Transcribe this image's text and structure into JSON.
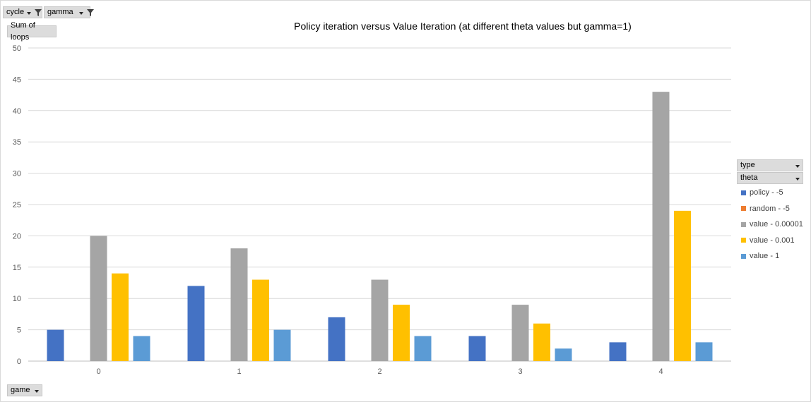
{
  "filters": {
    "cycle_label": "cycle",
    "gamma_label": "gamma",
    "values_label": "Sum of loops",
    "type_label": "type",
    "theta_label": "theta",
    "axis_field_label": "game"
  },
  "icons": {
    "filter": "funnel-filter-icon",
    "dropdown": "chevron-down-icon"
  },
  "chart_data": {
    "type": "bar",
    "title": "Policy iteration versus Value Iteration (at different theta values but gamma=1)",
    "categories": [
      "0",
      "1",
      "2",
      "3",
      "4"
    ],
    "ylim": [
      0,
      50
    ],
    "yticks": [
      0,
      5,
      10,
      15,
      20,
      25,
      30,
      35,
      40,
      45,
      50
    ],
    "grid": true,
    "legend_position": "right",
    "series": [
      {
        "name": "policy - -5",
        "color": "#4472C4",
        "values": [
          5,
          12,
          7,
          4,
          3
        ]
      },
      {
        "name": "random - -5",
        "color": "#ED7D31",
        "values": [
          0,
          0,
          0,
          0,
          0
        ]
      },
      {
        "name": "value - 0.00001",
        "color": "#A5A5A5",
        "values": [
          20,
          18,
          13,
          9,
          43
        ]
      },
      {
        "name": "value - 0.001",
        "color": "#FFC000",
        "values": [
          14,
          13,
          9,
          6,
          24
        ]
      },
      {
        "name": "value - 1",
        "color": "#5B9BD5",
        "values": [
          4,
          5,
          4,
          2,
          3
        ]
      }
    ]
  }
}
